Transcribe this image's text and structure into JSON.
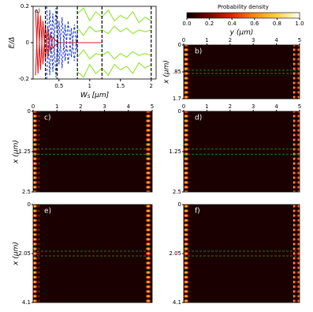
{
  "chart_data": [
    {
      "type": "line",
      "panel_label": "a)",
      "y_label": "E/Δ",
      "x_label": "W",
      "x_label_sub": "S",
      "x_label_unit": "[μm]",
      "xlim": [
        0.08,
        2.08
      ],
      "xticks": [
        0.5,
        1,
        1.5,
        2
      ],
      "ylim": [
        -0.2,
        0.2
      ],
      "yticks": [
        -0.2,
        0,
        0.2
      ],
      "vlines": [
        0.28,
        0.47,
        0.8,
        1.2,
        2.0
      ],
      "vline_color": "#000000",
      "series": [
        {
          "color": "#e31a1c",
          "style": "solid",
          "x": [
            0.12,
            0.16,
            0.2,
            0.24,
            0.28,
            0.32,
            0.36,
            0.4,
            0.45,
            0.5,
            0.6,
            0.8,
            1.0,
            1.2
          ],
          "values": [
            -0.18,
            0.17,
            -0.15,
            0.12,
            -0.1,
            0.08,
            -0.05,
            0.03,
            0.01,
            0.0,
            0.0,
            0.0,
            0.0,
            0.0
          ]
        },
        {
          "color": "#e31a1c",
          "style": "solid",
          "x": [
            0.12,
            0.16,
            0.2,
            0.24,
            0.28,
            0.32,
            0.36,
            0.4,
            0.45,
            0.5
          ],
          "values": [
            0.18,
            -0.17,
            0.15,
            -0.12,
            0.1,
            -0.08,
            0.05,
            -0.03,
            -0.01,
            0.0
          ]
        },
        {
          "color": "#1f3fd6",
          "style": "dashed",
          "x": [
            0.3,
            0.35,
            0.4,
            0.45,
            0.5,
            0.55,
            0.6,
            0.65,
            0.7,
            0.75,
            0.8
          ],
          "values": [
            0.2,
            -0.18,
            0.16,
            -0.19,
            0.12,
            -0.14,
            0.1,
            -0.12,
            0.08,
            -0.1,
            0.06
          ]
        },
        {
          "color": "#1f3fd6",
          "style": "dashed",
          "x": [
            0.3,
            0.35,
            0.4,
            0.45,
            0.5,
            0.55,
            0.6,
            0.65,
            0.7,
            0.75,
            0.8
          ],
          "values": [
            -0.2,
            0.18,
            -0.16,
            0.19,
            -0.12,
            0.14,
            -0.1,
            0.12,
            -0.08,
            0.1,
            -0.06
          ]
        },
        {
          "color": "#8ee62e",
          "style": "solid",
          "x": [
            0.8,
            0.9,
            1.0,
            1.1,
            1.2,
            1.3,
            1.4,
            1.5,
            1.6,
            1.7,
            1.8,
            1.9,
            2.0
          ],
          "values": [
            0.16,
            0.19,
            0.12,
            0.17,
            0.14,
            0.18,
            0.12,
            0.15,
            0.13,
            0.17,
            0.11,
            0.14,
            0.12
          ]
        },
        {
          "color": "#8ee62e",
          "style": "solid",
          "x": [
            0.8,
            0.9,
            1.0,
            1.1,
            1.2,
            1.3,
            1.4,
            1.5,
            1.6,
            1.7,
            1.8,
            1.9,
            2.0
          ],
          "values": [
            0.08,
            0.04,
            0.09,
            0.06,
            0.07,
            0.05,
            0.09,
            0.06,
            0.08,
            0.05,
            0.07,
            0.06,
            0.07
          ]
        },
        {
          "color": "#8ee62e",
          "style": "solid",
          "x": [
            0.8,
            0.9,
            1.0,
            1.1,
            1.2,
            1.3,
            1.4,
            1.5,
            1.6,
            1.7,
            1.8,
            1.9,
            2.0
          ],
          "values": [
            -0.08,
            -0.04,
            -0.09,
            -0.06,
            -0.07,
            -0.05,
            -0.09,
            -0.06,
            -0.08,
            -0.05,
            -0.07,
            -0.06,
            -0.07
          ]
        },
        {
          "color": "#8ee62e",
          "style": "solid",
          "x": [
            0.8,
            0.9,
            1.0,
            1.1,
            1.2,
            1.3,
            1.4,
            1.5,
            1.6,
            1.7,
            1.8,
            1.9,
            2.0
          ],
          "values": [
            -0.16,
            -0.19,
            -0.12,
            -0.17,
            -0.14,
            -0.18,
            -0.12,
            -0.15,
            -0.13,
            -0.17,
            -0.11,
            -0.14,
            -0.12
          ]
        }
      ]
    },
    {
      "type": "colorbar",
      "title": "Probability density",
      "colormap": "hot",
      "xlim": [
        0,
        1
      ],
      "xticks": [
        {
          "value": 0,
          "label": "0.0"
        },
        0.2,
        0.4,
        0.6,
        0.8,
        {
          "value": 1,
          "label": "1.0"
        }
      ]
    },
    {
      "type": "heatmap",
      "panel_label": "b)",
      "x_label": "y (μm)",
      "y_label": "x (μm)",
      "xlim": [
        0,
        5
      ],
      "xticks": [
        0,
        1,
        2,
        3,
        4,
        5
      ],
      "ylim": [
        0,
        1.7
      ],
      "yticks": [
        0,
        {
          "value": 0.85,
          "label": ".85"
        },
        1.7
      ],
      "hlines": [
        0.8,
        0.9
      ],
      "hline_color": "#2ca02c"
    },
    {
      "type": "heatmap",
      "panel_label": "c)",
      "y_label": "x (μm)",
      "xlim": [
        0,
        5
      ],
      "xticks": [
        0,
        1,
        2,
        3,
        4,
        5
      ],
      "ylim": [
        0,
        2.5
      ],
      "yticks": [
        0,
        1.25,
        2.5
      ],
      "hlines": [
        1.17,
        1.33
      ],
      "hline_color": "#2ca02c"
    },
    {
      "type": "heatmap",
      "panel_label": "d)",
      "xlim": [
        0,
        5
      ],
      "xticks": [
        0,
        1,
        2,
        3,
        4,
        5
      ],
      "ylim": [
        0,
        2.5
      ],
      "yticks": [
        0,
        1.25,
        2.5
      ],
      "hlines": [
        1.17,
        1.33
      ],
      "hline_color": "#2ca02c"
    },
    {
      "type": "heatmap",
      "panel_label": "e)",
      "y_label": "x (μm)",
      "ylim": [
        0,
        4.1
      ],
      "yticks": [
        0,
        2.05,
        4.1
      ],
      "hlines": [
        1.95,
        2.15
      ],
      "hline_color": "#2ca02c"
    },
    {
      "type": "heatmap",
      "panel_label": "f)",
      "ylim": [
        0,
        4.1
      ],
      "yticks": [
        0,
        2.05,
        4.1
      ],
      "hlines": [
        1.95,
        2.15
      ],
      "hline_color": "#2ca02c"
    }
  ]
}
